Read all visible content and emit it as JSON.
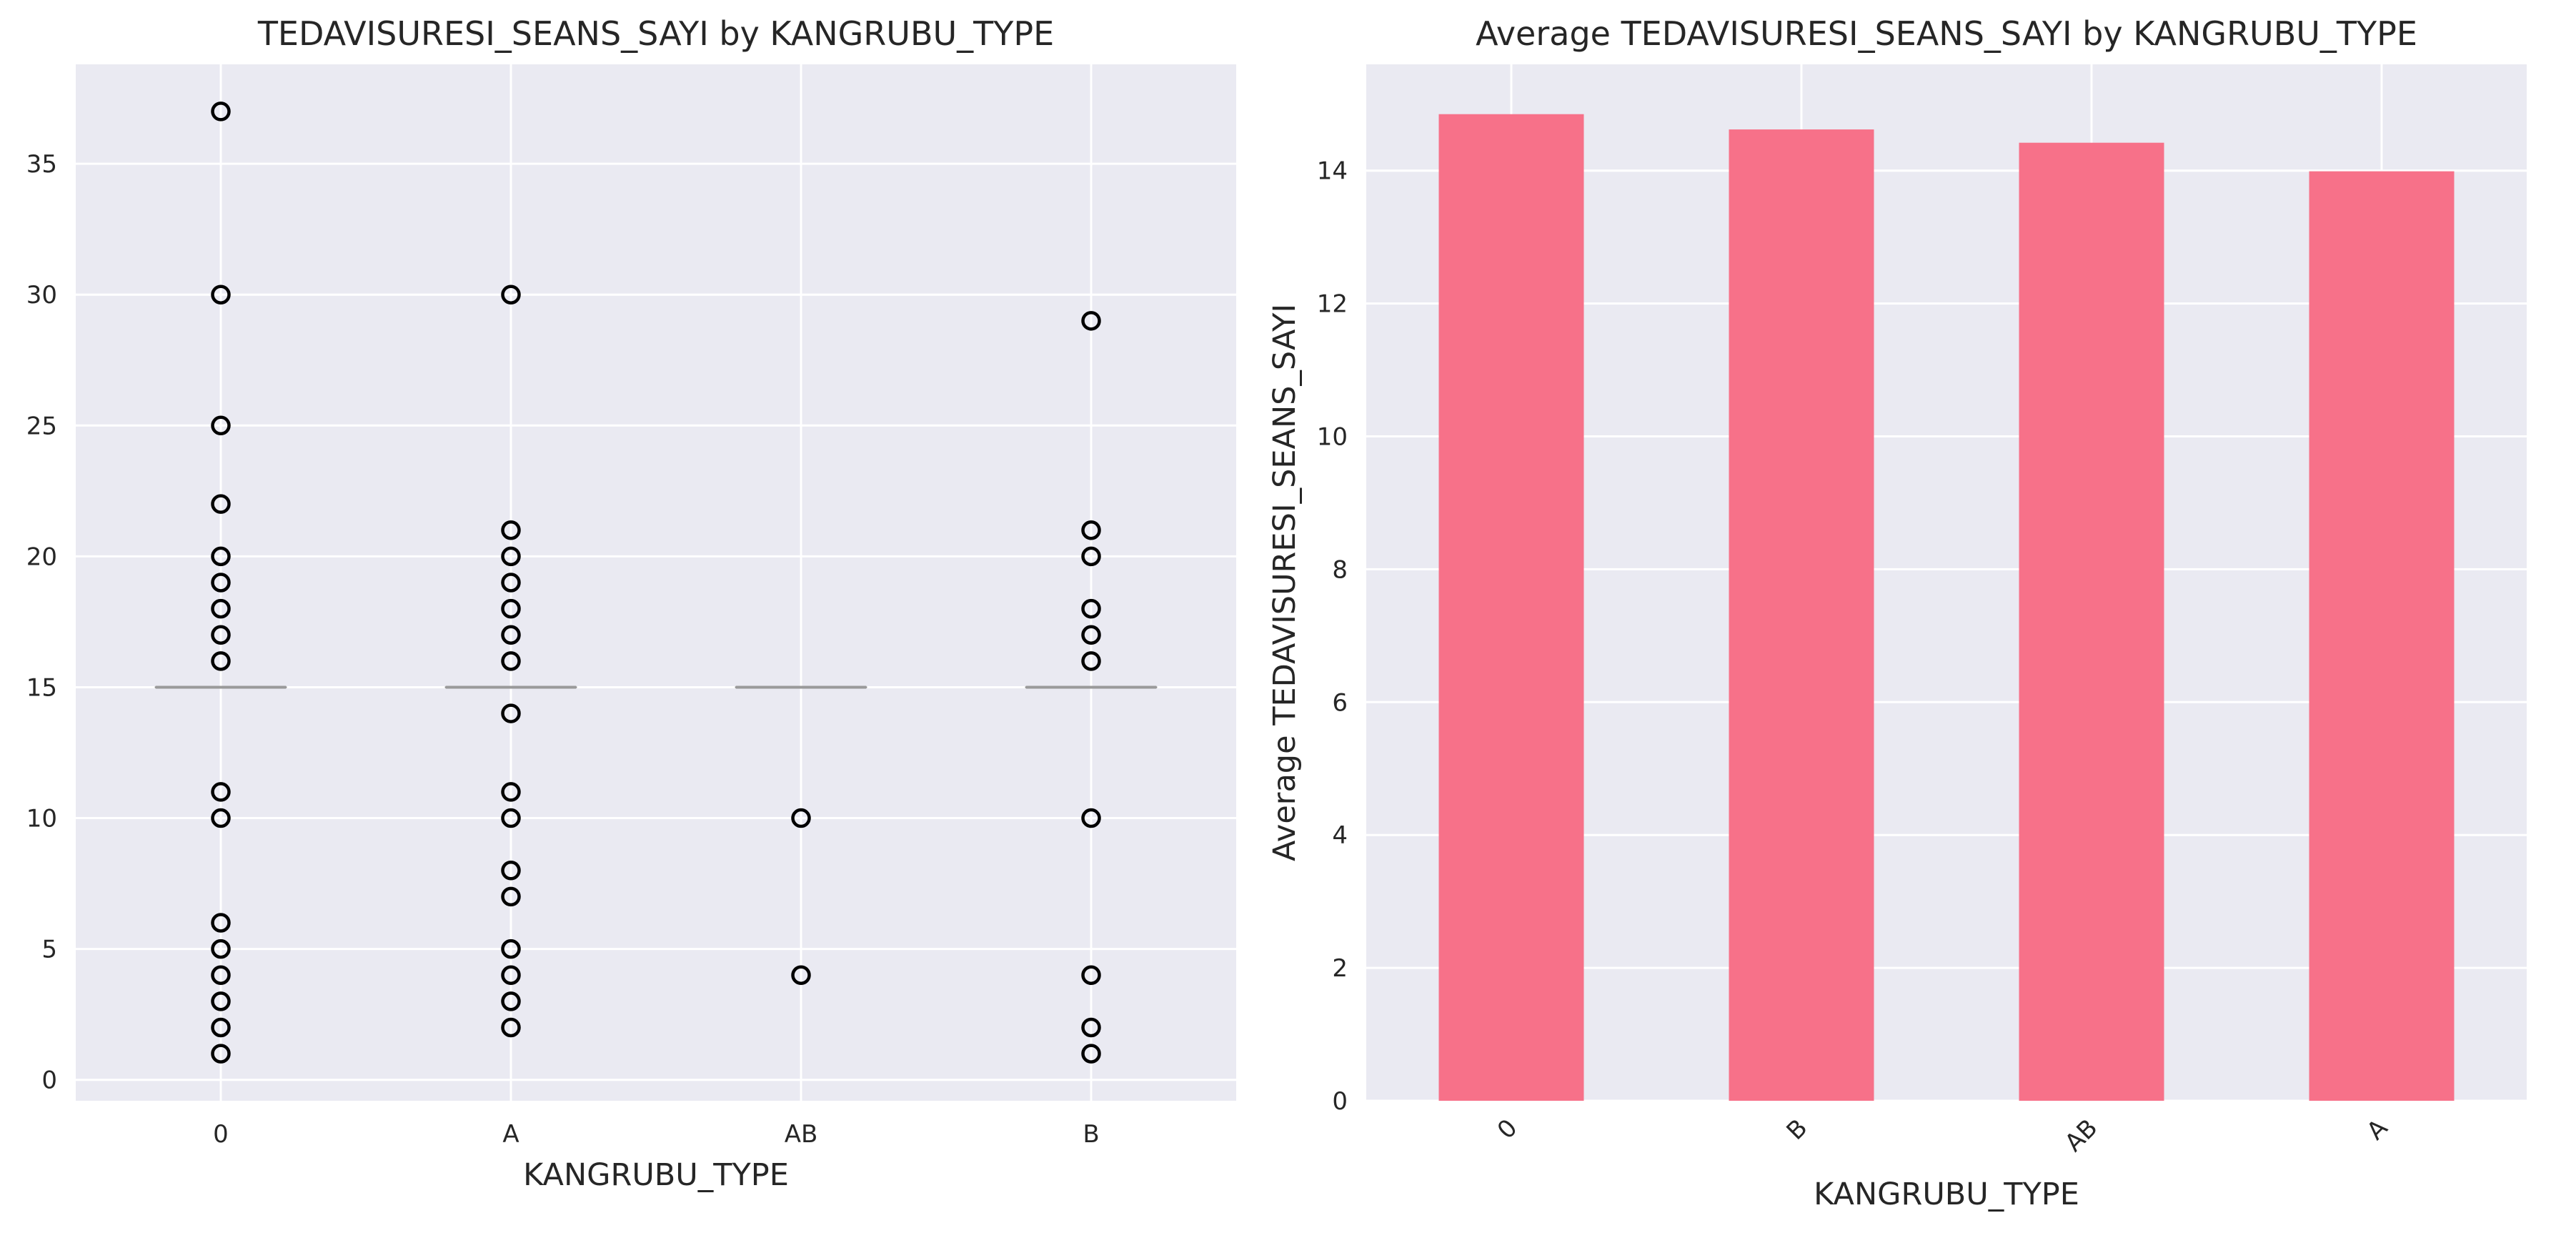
{
  "chart_data": [
    {
      "type": "box",
      "title": "TEDAVISURESI_SEANS_SAYI by KANGRUBU_TYPE",
      "xlabel": "KANGRUBU_TYPE",
      "ylabel": "",
      "categories": [
        "0",
        "A",
        "AB",
        "B"
      ],
      "ylim": [
        -0.8,
        38.8
      ],
      "yticks": [
        0,
        5,
        10,
        15,
        20,
        25,
        30,
        35
      ],
      "grid": true,
      "boxes": [
        {
          "category": "0",
          "median": 15,
          "q1": 15,
          "q3": 15,
          "outliers": [
            1,
            2,
            3,
            4,
            5,
            6,
            10,
            11,
            16,
            17,
            18,
            19,
            20,
            22,
            25,
            30,
            37
          ]
        },
        {
          "category": "A",
          "median": 15,
          "q1": 15,
          "q3": 15,
          "outliers": [
            2,
            3,
            4,
            5,
            7,
            8,
            10,
            11,
            14,
            16,
            17,
            18,
            19,
            20,
            21,
            30
          ]
        },
        {
          "category": "AB",
          "median": 15,
          "q1": 15,
          "q3": 15,
          "outliers": [
            4,
            10
          ]
        },
        {
          "category": "B",
          "median": 15,
          "q1": 15,
          "q3": 15,
          "outliers": [
            1,
            2,
            4,
            10,
            16,
            17,
            18,
            20,
            21,
            29
          ]
        }
      ],
      "colors": {
        "median": "#9a9a9a",
        "marker_edge": "#000000",
        "background": "#eaeaf2",
        "grid": "#ffffff"
      }
    },
    {
      "type": "bar",
      "title": "Average TEDAVISURESI_SEANS_SAYI by KANGRUBU_TYPE",
      "xlabel": "KANGRUBU_TYPE",
      "ylabel": "Average TEDAVISURESI_SEANS_SAYI",
      "categories": [
        "0",
        "B",
        "AB",
        "A"
      ],
      "values": [
        14.85,
        14.62,
        14.42,
        13.99
      ],
      "ylim": [
        0,
        15.6
      ],
      "yticks": [
        0,
        2,
        4,
        6,
        8,
        10,
        12,
        14
      ],
      "xtick_rotation": 45,
      "grid": true,
      "colors": {
        "bar": "#f77189",
        "background": "#eaeaf2",
        "grid": "#ffffff"
      }
    }
  ]
}
